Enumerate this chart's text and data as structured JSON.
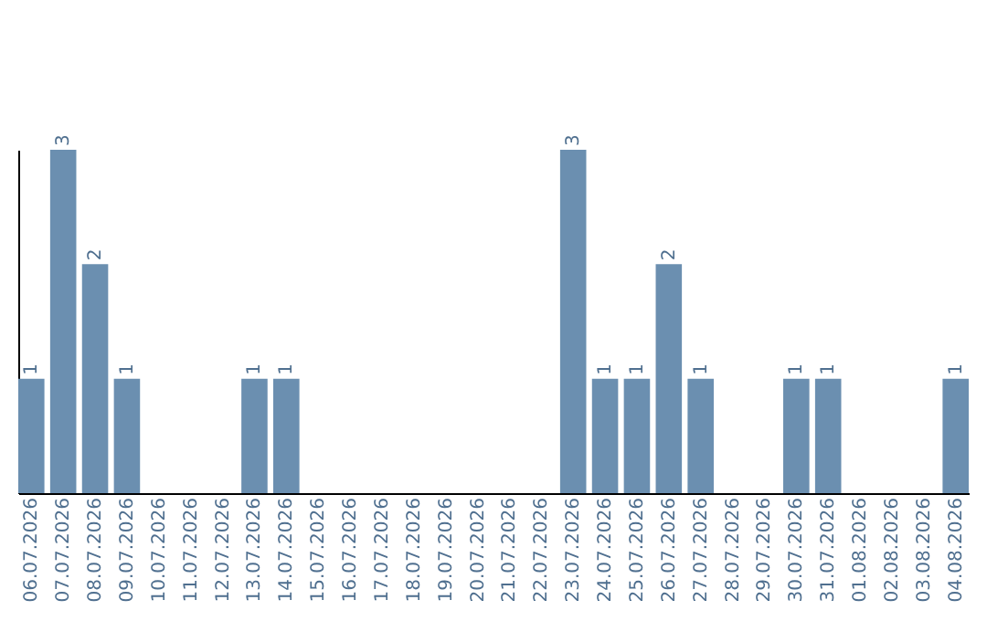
{
  "chart_data": {
    "type": "bar",
    "categories": [
      "06.07.2026",
      "07.07.2026",
      "08.07.2026",
      "09.07.2026",
      "10.07.2026",
      "11.07.2026",
      "12.07.2026",
      "13.07.2026",
      "14.07.2026",
      "15.07.2026",
      "16.07.2026",
      "17.07.2026",
      "18.07.2026",
      "19.07.2026",
      "20.07.2026",
      "21.07.2026",
      "22.07.2026",
      "23.07.2026",
      "24.07.2026",
      "25.07.2026",
      "26.07.2026",
      "27.07.2026",
      "28.07.2026",
      "29.07.2026",
      "30.07.2026",
      "31.07.2026",
      "01.08.2026",
      "02.08.2026",
      "03.08.2026",
      "04.08.2026"
    ],
    "values": [
      1,
      3,
      2,
      1,
      0,
      0,
      0,
      1,
      1,
      0,
      0,
      0,
      0,
      0,
      0,
      0,
      0,
      3,
      1,
      1,
      2,
      1,
      0,
      0,
      1,
      1,
      0,
      0,
      0,
      1
    ],
    "value_labels": [
      "1",
      "3",
      "2",
      "1",
      null,
      null,
      null,
      "1",
      "1",
      null,
      null,
      null,
      null,
      null,
      null,
      null,
      null,
      "3",
      "1",
      "1",
      "2",
      "1",
      null,
      null,
      "1",
      "1",
      null,
      null,
      null,
      "1"
    ],
    "color": "#6b8fb0",
    "grid": false
  }
}
